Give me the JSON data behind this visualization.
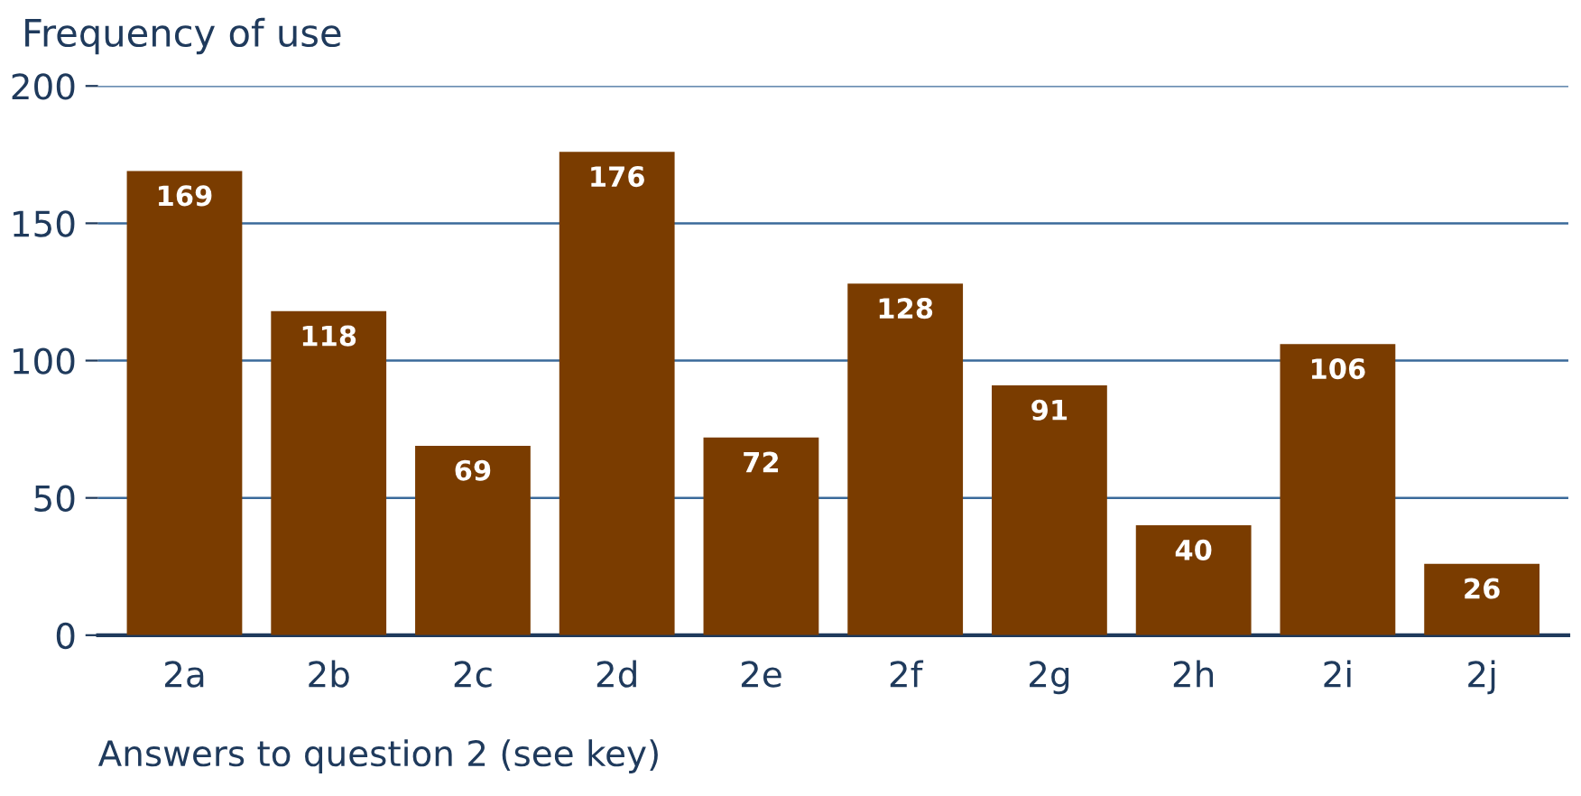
{
  "chart_data": {
    "type": "bar",
    "title": "Frequency of use",
    "xlabel": "Answers to question 2 (see key)",
    "categories": [
      "2a",
      "2b",
      "2c",
      "2d",
      "2e",
      "2f",
      "2g",
      "2h",
      "2i",
      "2j"
    ],
    "values": [
      169,
      118,
      69,
      176,
      72,
      128,
      91,
      40,
      106,
      26
    ],
    "color": "#7a3c00",
    "ylim": [
      0,
      200
    ],
    "yticks": [
      0,
      50,
      100,
      150,
      200
    ],
    "grid": "y",
    "data_labels": true
  }
}
